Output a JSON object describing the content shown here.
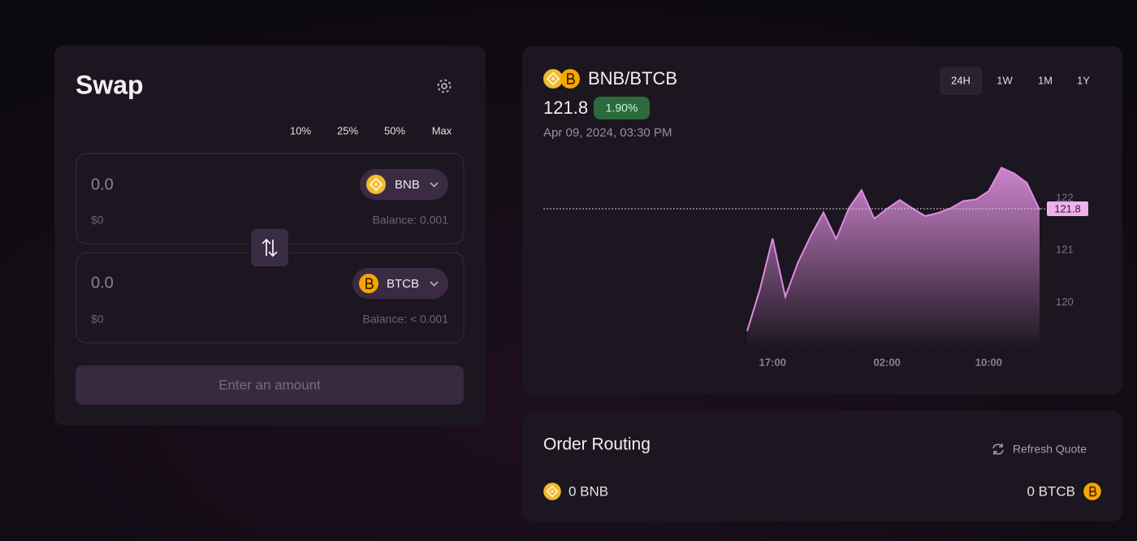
{
  "swap": {
    "title": "Swap",
    "percent_options": [
      "10%",
      "25%",
      "50%",
      "Max"
    ],
    "inputs": [
      {
        "amount": "0.0",
        "token": "BNB",
        "usd": "$0",
        "balance": "Balance: 0.001"
      },
      {
        "amount": "0.0",
        "token": "BTCB",
        "usd": "$0",
        "balance": "Balance: < 0.001"
      }
    ],
    "button": "Enter an amount"
  },
  "pair": {
    "name": "BNB/BTCB",
    "change": "1.90%",
    "date": "Apr 09, 2024, 03:30 PM",
    "timeframes": [
      "24H",
      "1W",
      "1M",
      "1Y"
    ]
  },
  "chart_data": {
    "type": "area",
    "categories": [
      null,
      null,
      "17:00",
      null,
      null,
      null,
      null,
      null,
      null,
      null,
      null,
      "02:00",
      null,
      null,
      null,
      null,
      null,
      null,
      null,
      "10:00",
      null,
      null,
      null,
      null
    ],
    "values": [
      119.45,
      120.25,
      121.23,
      120.11,
      120.77,
      121.28,
      121.73,
      121.22,
      121.81,
      122.16,
      121.61,
      121.8,
      121.97,
      121.81,
      121.66,
      121.72,
      121.81,
      121.95,
      121.98,
      122.14,
      122.59,
      122.48,
      122.3,
      121.78
    ],
    "ylim": [
      119.1,
      122.8
    ],
    "yticks": [
      120,
      121,
      122
    ],
    "current_value": 121.8,
    "color": "#e08ae0"
  },
  "order_routing": {
    "title": "Order Routing",
    "refresh": "Refresh Quote",
    "from": "0 BNB",
    "to": "0 BTCB"
  }
}
